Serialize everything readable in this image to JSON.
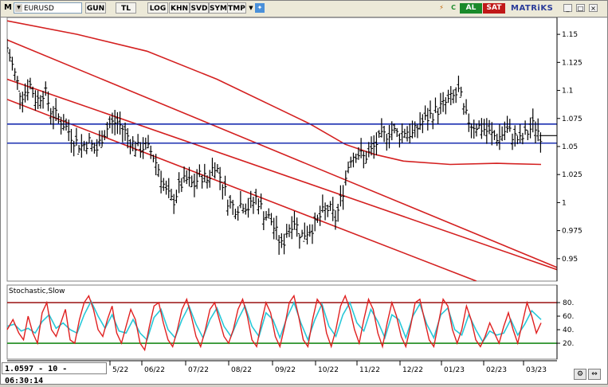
{
  "toolbar": {
    "menu_letter": "M",
    "symbol": "EURUSD",
    "buttons": [
      "GUN",
      "TL",
      "LOG",
      "KHN",
      "SVD",
      "SYM",
      "TMP"
    ],
    "al_label": "AL",
    "sat_label": "SAT",
    "brand": "MATRiKS",
    "c_label": "C"
  },
  "status_readout": "1.0597 - 10 - 06:30:14",
  "indicator_label": "Stochastic,Slow",
  "colors": {
    "price_bar": "#000000",
    "channel_red": "#d42020",
    "support_blue": "#1b2fb0",
    "stoch_k": "#e02020",
    "stoch_d": "#28c8d8",
    "level_80": "#9a1010",
    "level_20": "#1a8a1a",
    "yellow_highlight": "#f0e050"
  },
  "chart_data": [
    {
      "type": "ohlc",
      "symbol": "EURUSD",
      "y_ticks": [
        1.15,
        1.125,
        1.1,
        1.075,
        1.05,
        1.025,
        1,
        0.975,
        0.95
      ],
      "ylim": [
        0.93,
        1.165
      ],
      "x_labels": [
        "5/22",
        "06/22",
        "07/22",
        "08/22",
        "09/22",
        "10/22",
        "11/22",
        "12/22",
        "01/23",
        "02/23",
        "03/23"
      ],
      "horizontal_levels": [
        1.07,
        1.053
      ],
      "current_value": 1.0597,
      "close_path": [
        [
          0,
          1.138
        ],
        [
          12,
          1.095
        ],
        [
          20,
          1.105
        ],
        [
          25,
          1.09
        ],
        [
          32,
          1.1
        ],
        [
          38,
          1.08
        ],
        [
          45,
          1.075
        ],
        [
          52,
          1.065
        ],
        [
          58,
          1.055
        ],
        [
          64,
          1.05
        ],
        [
          70,
          1.055
        ],
        [
          76,
          1.045
        ],
        [
          82,
          1.06
        ],
        [
          88,
          1.07
        ],
        [
          94,
          1.072
        ],
        [
          100,
          1.065
        ],
        [
          106,
          1.055
        ],
        [
          112,
          1.048
        ],
        [
          118,
          1.05
        ],
        [
          124,
          1.045
        ],
        [
          130,
          1.03
        ],
        [
          136,
          1.01
        ],
        [
          142,
          1.0
        ],
        [
          148,
          1.015
        ],
        [
          154,
          1.02
        ],
        [
          160,
          1.015
        ],
        [
          166,
          1.025
        ],
        [
          172,
          1.02
        ],
        [
          178,
          1.035
        ],
        [
          184,
          1.02
        ],
        [
          190,
          1.0
        ],
        [
          196,
          0.995
        ],
        [
          202,
          1.0
        ],
        [
          208,
          0.995
        ],
        [
          214,
          1.005
        ],
        [
          220,
          0.99
        ],
        [
          226,
          0.985
        ],
        [
          232,
          0.97
        ],
        [
          236,
          0.96
        ],
        [
          240,
          0.975
        ],
        [
          246,
          0.985
        ],
        [
          252,
          0.97
        ],
        [
          258,
          0.975
        ],
        [
          264,
          0.98
        ],
        [
          270,
          0.99
        ],
        [
          276,
          0.995
        ],
        [
          282,
          0.985
        ],
        [
          288,
          1.01
        ],
        [
          294,
          1.04
        ],
        [
          300,
          1.045
        ],
        [
          306,
          1.04
        ],
        [
          312,
          1.045
        ],
        [
          318,
          1.055
        ],
        [
          324,
          1.06
        ],
        [
          330,
          1.065
        ],
        [
          336,
          1.06
        ],
        [
          342,
          1.065
        ],
        [
          348,
          1.06
        ],
        [
          354,
          1.07
        ],
        [
          360,
          1.075
        ],
        [
          366,
          1.08
        ],
        [
          372,
          1.085
        ],
        [
          378,
          1.09
        ],
        [
          384,
          1.095
        ],
        [
          388,
          1.1
        ],
        [
          392,
          1.08
        ],
        [
          398,
          1.07
        ],
        [
          404,
          1.068
        ],
        [
          410,
          1.065
        ],
        [
          416,
          1.06
        ],
        [
          422,
          1.058
        ],
        [
          428,
          1.065
        ],
        [
          434,
          1.06
        ],
        [
          440,
          1.055
        ],
        [
          446,
          1.062
        ],
        [
          452,
          1.07
        ],
        [
          458,
          1.0597
        ]
      ],
      "ma_path": [
        [
          0,
          1.162
        ],
        [
          60,
          1.15
        ],
        [
          120,
          1.135
        ],
        [
          180,
          1.11
        ],
        [
          230,
          1.085
        ],
        [
          260,
          1.07
        ],
        [
          290,
          1.052
        ],
        [
          315,
          1.043
        ],
        [
          340,
          1.037
        ],
        [
          380,
          1.034
        ],
        [
          420,
          1.035
        ],
        [
          458,
          1.034
        ]
      ],
      "channel_upper": [
        [
          0,
          1.145
        ],
        [
          459,
          0.93
        ]
      ],
      "channel_lower": [
        [
          0,
          1.092
        ],
        [
          300,
          0.93
        ]
      ],
      "channel_mid": [
        [
          0,
          1.11
        ],
        [
          459,
          0.93
        ]
      ]
    },
    {
      "type": "line",
      "name": "Stochastic,Slow",
      "y_ticks": [
        80,
        60,
        40,
        20
      ],
      "ylim": [
        0,
        100
      ],
      "levels": [
        80,
        20
      ],
      "k_path": [
        [
          0,
          40
        ],
        [
          5,
          55
        ],
        [
          10,
          35
        ],
        [
          14,
          25
        ],
        [
          18,
          60
        ],
        [
          22,
          35
        ],
        [
          26,
          20
        ],
        [
          30,
          65
        ],
        [
          34,
          80
        ],
        [
          38,
          40
        ],
        [
          42,
          30
        ],
        [
          46,
          50
        ],
        [
          50,
          70
        ],
        [
          54,
          25
        ],
        [
          58,
          20
        ],
        [
          62,
          55
        ],
        [
          66,
          80
        ],
        [
          70,
          90
        ],
        [
          74,
          70
        ],
        [
          78,
          40
        ],
        [
          82,
          30
        ],
        [
          86,
          55
        ],
        [
          90,
          75
        ],
        [
          94,
          35
        ],
        [
          98,
          20
        ],
        [
          102,
          45
        ],
        [
          106,
          70
        ],
        [
          110,
          55
        ],
        [
          114,
          20
        ],
        [
          118,
          10
        ],
        [
          122,
          45
        ],
        [
          126,
          75
        ],
        [
          130,
          80
        ],
        [
          134,
          50
        ],
        [
          138,
          25
        ],
        [
          142,
          15
        ],
        [
          146,
          40
        ],
        [
          150,
          70
        ],
        [
          154,
          85
        ],
        [
          158,
          60
        ],
        [
          162,
          30
        ],
        [
          166,
          15
        ],
        [
          170,
          40
        ],
        [
          174,
          70
        ],
        [
          178,
          80
        ],
        [
          182,
          55
        ],
        [
          186,
          30
        ],
        [
          190,
          20
        ],
        [
          194,
          40
        ],
        [
          198,
          70
        ],
        [
          202,
          85
        ],
        [
          206,
          60
        ],
        [
          210,
          25
        ],
        [
          214,
          15
        ],
        [
          218,
          50
        ],
        [
          222,
          80
        ],
        [
          226,
          65
        ],
        [
          230,
          30
        ],
        [
          234,
          15
        ],
        [
          238,
          45
        ],
        [
          242,
          80
        ],
        [
          246,
          90
        ],
        [
          250,
          60
        ],
        [
          254,
          25
        ],
        [
          258,
          15
        ],
        [
          262,
          55
        ],
        [
          266,
          85
        ],
        [
          270,
          75
        ],
        [
          274,
          35
        ],
        [
          278,
          15
        ],
        [
          282,
          40
        ],
        [
          286,
          75
        ],
        [
          290,
          90
        ],
        [
          294,
          70
        ],
        [
          298,
          40
        ],
        [
          302,
          20
        ],
        [
          306,
          55
        ],
        [
          310,
          85
        ],
        [
          314,
          70
        ],
        [
          318,
          35
        ],
        [
          322,
          15
        ],
        [
          326,
          50
        ],
        [
          330,
          80
        ],
        [
          334,
          60
        ],
        [
          338,
          30
        ],
        [
          342,
          15
        ],
        [
          346,
          45
        ],
        [
          350,
          80
        ],
        [
          354,
          85
        ],
        [
          358,
          55
        ],
        [
          362,
          25
        ],
        [
          366,
          15
        ],
        [
          370,
          50
        ],
        [
          374,
          85
        ],
        [
          378,
          75
        ],
        [
          382,
          40
        ],
        [
          386,
          20
        ],
        [
          390,
          40
        ],
        [
          394,
          75
        ],
        [
          398,
          55
        ],
        [
          402,
          25
        ],
        [
          406,
          15
        ],
        [
          410,
          30
        ],
        [
          414,
          50
        ],
        [
          418,
          35
        ],
        [
          422,
          20
        ],
        [
          426,
          45
        ],
        [
          430,
          65
        ],
        [
          434,
          40
        ],
        [
          438,
          20
        ],
        [
          442,
          50
        ],
        [
          446,
          80
        ],
        [
          450,
          60
        ],
        [
          454,
          35
        ],
        [
          458,
          50
        ]
      ],
      "d_path": [
        [
          0,
          45
        ],
        [
          6,
          48
        ],
        [
          12,
          38
        ],
        [
          18,
          42
        ],
        [
          24,
          35
        ],
        [
          30,
          52
        ],
        [
          36,
          62
        ],
        [
          42,
          42
        ],
        [
          48,
          50
        ],
        [
          54,
          40
        ],
        [
          60,
          35
        ],
        [
          66,
          62
        ],
        [
          72,
          82
        ],
        [
          78,
          60
        ],
        [
          84,
          42
        ],
        [
          90,
          62
        ],
        [
          96,
          38
        ],
        [
          102,
          35
        ],
        [
          108,
          55
        ],
        [
          114,
          35
        ],
        [
          120,
          25
        ],
        [
          126,
          58
        ],
        [
          132,
          70
        ],
        [
          138,
          40
        ],
        [
          144,
          28
        ],
        [
          150,
          55
        ],
        [
          156,
          75
        ],
        [
          162,
          48
        ],
        [
          168,
          28
        ],
        [
          174,
          55
        ],
        [
          180,
          72
        ],
        [
          186,
          45
        ],
        [
          192,
          30
        ],
        [
          198,
          55
        ],
        [
          204,
          75
        ],
        [
          210,
          45
        ],
        [
          216,
          30
        ],
        [
          222,
          65
        ],
        [
          228,
          55
        ],
        [
          234,
          28
        ],
        [
          240,
          58
        ],
        [
          246,
          80
        ],
        [
          252,
          50
        ],
        [
          258,
          25
        ],
        [
          264,
          55
        ],
        [
          270,
          78
        ],
        [
          276,
          45
        ],
        [
          282,
          30
        ],
        [
          288,
          62
        ],
        [
          294,
          80
        ],
        [
          300,
          50
        ],
        [
          306,
          38
        ],
        [
          312,
          70
        ],
        [
          318,
          52
        ],
        [
          324,
          28
        ],
        [
          330,
          62
        ],
        [
          336,
          55
        ],
        [
          342,
          28
        ],
        [
          348,
          60
        ],
        [
          354,
          78
        ],
        [
          360,
          48
        ],
        [
          366,
          28
        ],
        [
          372,
          62
        ],
        [
          378,
          72
        ],
        [
          384,
          40
        ],
        [
          390,
          32
        ],
        [
          396,
          62
        ],
        [
          402,
          40
        ],
        [
          408,
          22
        ],
        [
          414,
          38
        ],
        [
          420,
          32
        ],
        [
          426,
          35
        ],
        [
          432,
          55
        ],
        [
          438,
          32
        ],
        [
          444,
          48
        ],
        [
          450,
          68
        ],
        [
          458,
          55
        ]
      ]
    }
  ]
}
